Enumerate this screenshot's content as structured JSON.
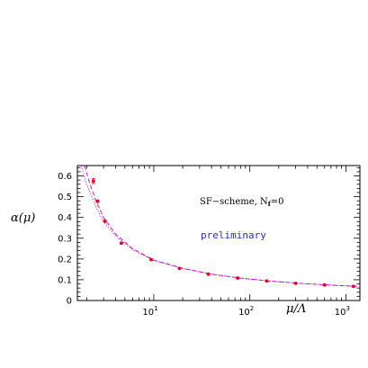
{
  "chart_data": {
    "type": "scatter",
    "title": "",
    "xlabel": "μ/Λ",
    "ylabel": "α(μ)",
    "x_scale": "log",
    "xlim": [
      1.6,
      1400
    ],
    "ylim": [
      0,
      0.65
    ],
    "y_ticks": [
      "0",
      "0.1",
      "0.2",
      "0.3",
      "0.4",
      "0.5",
      "0.6"
    ],
    "x_ticks": [
      {
        "value": 10,
        "base": "10",
        "exp": "1"
      },
      {
        "value": 100,
        "base": "10",
        "exp": "2"
      },
      {
        "value": 1000,
        "base": "10",
        "exp": "3"
      }
    ],
    "annotations": {
      "scheme_text": "SF−scheme, N",
      "scheme_sub": "f",
      "scheme_eq": "=0",
      "preliminary": "preliminary"
    },
    "colors": {
      "points": "#e8001c",
      "curves": "#d400d4",
      "preliminary": "#2a2ad8"
    },
    "points": [
      {
        "x": 2.35,
        "y": 0.575,
        "err": 0.012
      },
      {
        "x": 2.6,
        "y": 0.478,
        "err": 0.006
      },
      {
        "x": 3.1,
        "y": 0.382,
        "err": 0.005
      },
      {
        "x": 4.6,
        "y": 0.276,
        "err": 0.004
      },
      {
        "x": 9.4,
        "y": 0.197,
        "err": 0.003
      },
      {
        "x": 18.5,
        "y": 0.155,
        "err": 0.002
      },
      {
        "x": 37,
        "y": 0.127,
        "err": 0.002
      },
      {
        "x": 75,
        "y": 0.108,
        "err": 0.002
      },
      {
        "x": 150,
        "y": 0.094,
        "err": 0.002
      },
      {
        "x": 300,
        "y": 0.083,
        "err": 0.001
      },
      {
        "x": 600,
        "y": 0.075,
        "err": 0.001
      },
      {
        "x": 1200,
        "y": 0.068,
        "err": 0.001
      }
    ],
    "curves": [
      {
        "style": "dashed",
        "points": [
          [
            1.9,
            0.65
          ],
          [
            2.1,
            0.58
          ],
          [
            2.5,
            0.48
          ],
          [
            3.0,
            0.4
          ],
          [
            4.0,
            0.32
          ],
          [
            6.0,
            0.25
          ],
          [
            10,
            0.195
          ],
          [
            20,
            0.155
          ],
          [
            40,
            0.127
          ],
          [
            80,
            0.108
          ],
          [
            160,
            0.094
          ],
          [
            320,
            0.083
          ],
          [
            640,
            0.075
          ],
          [
            1300,
            0.068
          ]
        ]
      },
      {
        "style": "dotted",
        "points": [
          [
            1.75,
            0.65
          ],
          [
            2.0,
            0.56
          ],
          [
            2.5,
            0.45
          ],
          [
            3.0,
            0.38
          ],
          [
            4.0,
            0.31
          ],
          [
            6.0,
            0.245
          ],
          [
            10,
            0.193
          ],
          [
            20,
            0.154
          ],
          [
            40,
            0.127
          ],
          [
            80,
            0.108
          ],
          [
            160,
            0.094
          ],
          [
            320,
            0.083
          ],
          [
            640,
            0.075
          ],
          [
            1300,
            0.068
          ]
        ]
      }
    ]
  }
}
